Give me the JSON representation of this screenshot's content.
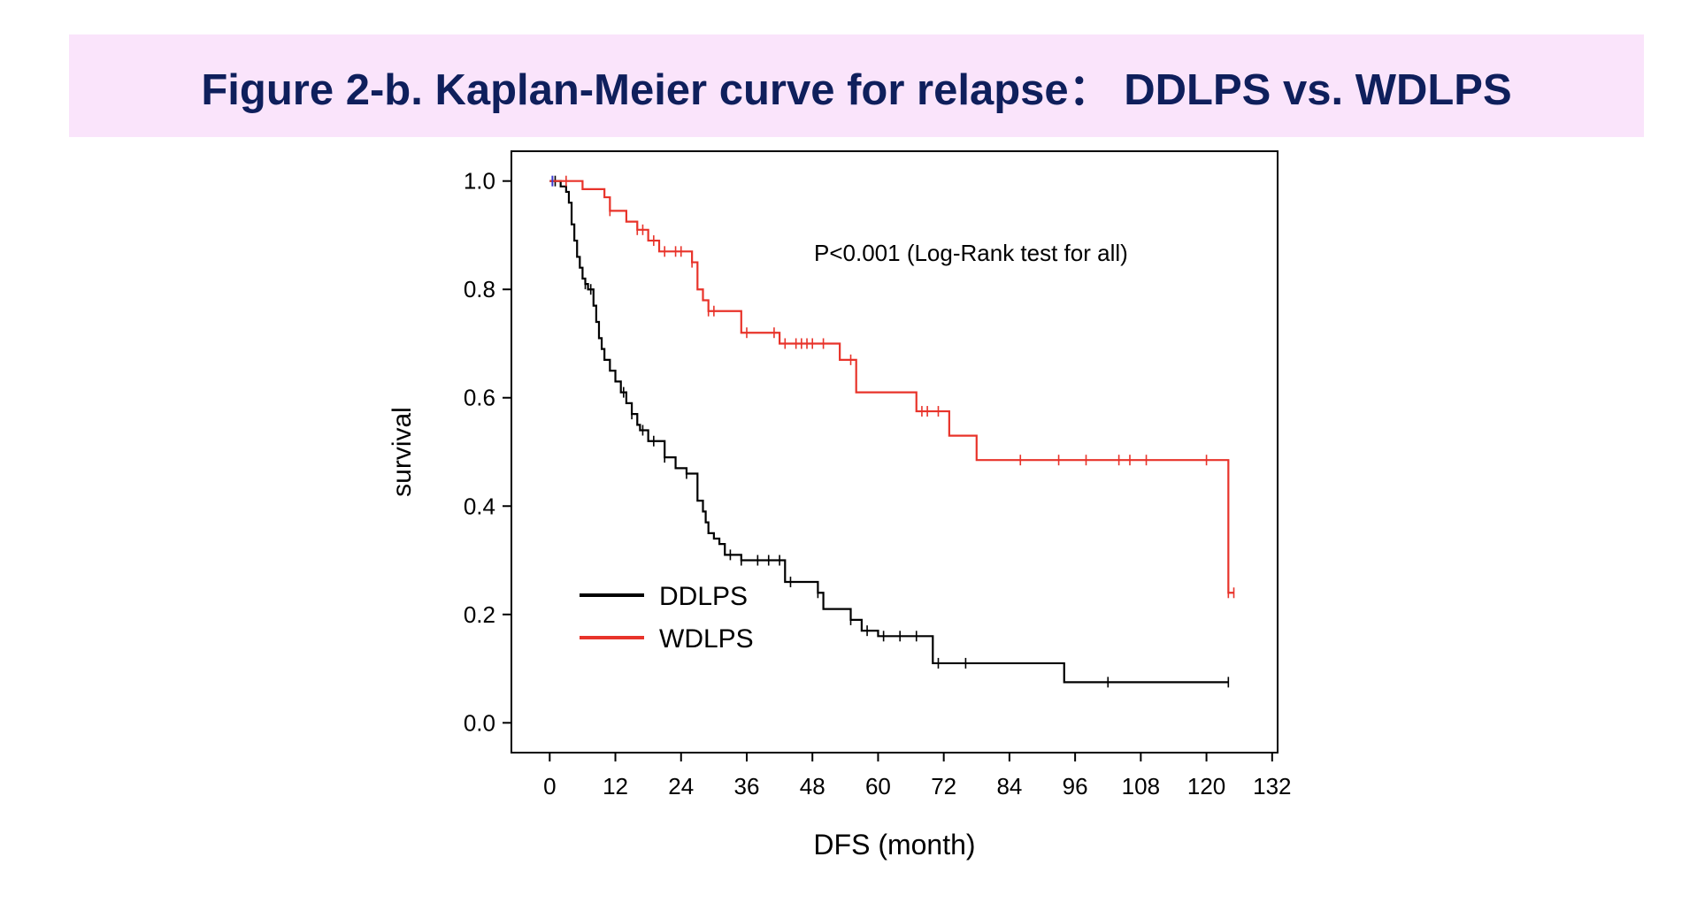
{
  "title": "Figure 2-b. Kaplan-Meier curve for relapse： DDLPS vs. WDLPS",
  "chart_data": {
    "type": "line",
    "step": true,
    "xlabel": "DFS (month)",
    "ylabel": "survival",
    "xlim": [
      -7,
      133
    ],
    "ylim": [
      -0.055,
      1.055
    ],
    "xticks": [
      0,
      12,
      24,
      36,
      48,
      60,
      72,
      84,
      96,
      108,
      120,
      132
    ],
    "yticks": [
      "0.0",
      "0.2",
      "0.4",
      "0.6",
      "0.8",
      "1.0"
    ],
    "grid": false,
    "legend_position": "bottom-left",
    "annotation": "P<0.001 (Log-Rank test for all)",
    "series": [
      {
        "name": "DDLPS",
        "color": "#000000",
        "x": [
          0,
          2,
          3,
          3.5,
          4,
          4.5,
          5,
          5.5,
          6,
          6.5,
          7,
          8,
          8.5,
          9,
          9.5,
          10,
          11,
          12,
          13,
          14,
          15,
          16,
          16.5,
          18,
          21,
          23,
          25,
          27,
          28,
          28.5,
          29,
          30,
          31,
          32,
          35,
          36,
          43,
          49,
          50,
          55,
          57,
          60,
          70,
          94,
          124
        ],
        "y": [
          1.0,
          0.99,
          0.98,
          0.96,
          0.92,
          0.89,
          0.86,
          0.84,
          0.82,
          0.81,
          0.8,
          0.77,
          0.74,
          0.71,
          0.69,
          0.67,
          0.65,
          0.63,
          0.61,
          0.59,
          0.57,
          0.55,
          0.54,
          0.52,
          0.49,
          0.47,
          0.46,
          0.41,
          0.39,
          0.37,
          0.35,
          0.34,
          0.33,
          0.31,
          0.3,
          0.3,
          0.26,
          0.24,
          0.21,
          0.19,
          0.17,
          0.16,
          0.11,
          0.075,
          0.075
        ],
        "censored": [
          1,
          6.5,
          7.5,
          13.5,
          15,
          17,
          19,
          21,
          25,
          33,
          35,
          38,
          40,
          42,
          44,
          49,
          55,
          58,
          61,
          64,
          67,
          71,
          76,
          102,
          124
        ]
      },
      {
        "name": "WDLPS",
        "color": "#e8332a",
        "x": [
          0,
          6,
          10,
          11,
          14,
          16,
          18,
          20,
          26,
          27,
          28,
          29,
          35,
          42,
          53,
          56,
          67,
          73,
          78,
          124
        ],
        "y": [
          1.0,
          0.985,
          0.97,
          0.945,
          0.925,
          0.91,
          0.89,
          0.87,
          0.85,
          0.8,
          0.78,
          0.76,
          0.72,
          0.7,
          0.67,
          0.61,
          0.575,
          0.53,
          0.485,
          0.24
        ],
        "censored": [
          3,
          11,
          16,
          17,
          19,
          21,
          23,
          24,
          26,
          29,
          30,
          36,
          41,
          43,
          45,
          46,
          47,
          48,
          50,
          55,
          68,
          69,
          71,
          86,
          93,
          98,
          104,
          106,
          109,
          120,
          124,
          125
        ]
      }
    ]
  }
}
